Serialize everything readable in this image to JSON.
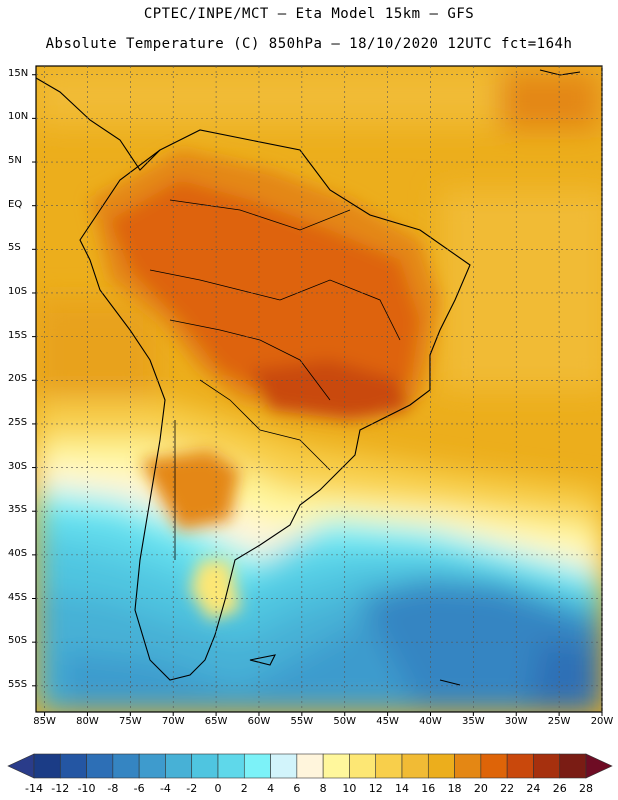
{
  "header": {
    "line1": "CPTEC/INPE/MCT –  Eta Model 15km – GFS",
    "line2": "Absolute Temperature (C) 850hPa – 18/10/2020 12UTC fct=164h"
  },
  "map": {
    "lat_labels": [
      "15N",
      "10N",
      "5N",
      "EQ",
      "5S",
      "10S",
      "15S",
      "20S",
      "25S",
      "30S",
      "35S",
      "40S",
      "45S",
      "50S",
      "55S"
    ],
    "lon_labels": [
      "85W",
      "80W",
      "75W",
      "70W",
      "65W",
      "60W",
      "55W",
      "50W",
      "45W",
      "40W",
      "35W",
      "30W",
      "25W",
      "20W"
    ],
    "lat_values": [
      15,
      10,
      5,
      0,
      -5,
      -10,
      -15,
      -20,
      -25,
      -30,
      -35,
      -40,
      -45,
      -50,
      -55
    ],
    "lon_values": [
      -85,
      -80,
      -75,
      -70,
      -65,
      -60,
      -55,
      -50,
      -45,
      -40,
      -35,
      -30,
      -25,
      -20
    ],
    "lat_range": [
      -58,
      16
    ],
    "lon_range": [
      -86,
      -20
    ]
  },
  "colorbar": {
    "labels": [
      "-14",
      "-12",
      "-10",
      "-8",
      "-6",
      "-4",
      "-2",
      "0",
      "2",
      "4",
      "6",
      "8",
      "10",
      "12",
      "14",
      "16",
      "18",
      "20",
      "22",
      "24",
      "26",
      "28"
    ],
    "colors": [
      "#1b3c86",
      "#2456a3",
      "#2d6fb6",
      "#3585c2",
      "#3e9bcd",
      "#47b1d6",
      "#4fc5e0",
      "#5fd8ea",
      "#7cf2f8",
      "#d2f4fb",
      "#fff5dc",
      "#fff79c",
      "#fde774",
      "#f8cf4b",
      "#f1bb35",
      "#ecae1c",
      "#e48714",
      "#de6408",
      "#c9480c",
      "#a6300e",
      "#7a1c14"
    ],
    "under_color": "#2a3c8a",
    "over_color": "#6e0c24"
  },
  "colors": {
    "ocean_warm": "#ecae1c",
    "ocean_mild": "#f1bb35",
    "hot_interior": "#de6408",
    "cold_south": "#3e9bcd"
  }
}
